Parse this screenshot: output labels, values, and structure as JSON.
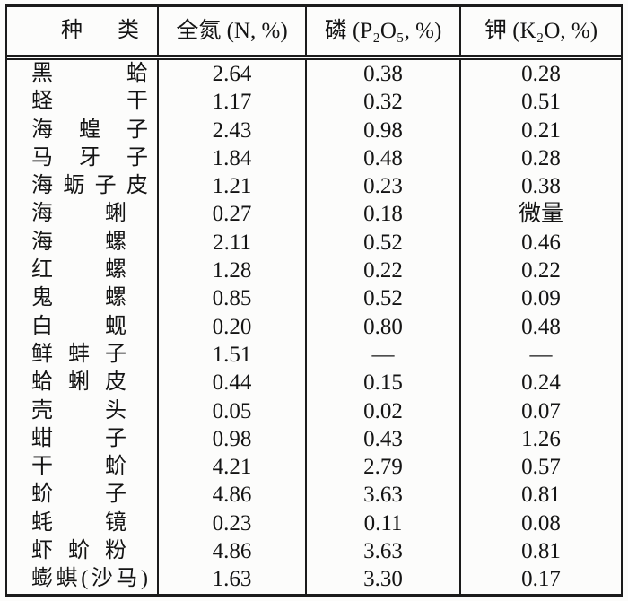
{
  "page": {
    "background": "#fcfcfb",
    "ink": "#141414",
    "line_color": "#1b1b1b"
  },
  "table": {
    "headers": [
      "种类",
      "全氮 (N, %)",
      "磷 (P₂O₅, %)",
      "钾 (K₂O, %)"
    ],
    "trace_label": "微量",
    "empty_label": "—",
    "rows": [
      {
        "name": "黑蛤",
        "n": "2.64",
        "p": "0.38",
        "k": "0.28"
      },
      {
        "name": "蛏干",
        "n": "1.17",
        "p": "0.32",
        "k": "0.51"
      },
      {
        "name": "海蝗子",
        "n": "2.43",
        "p": "0.98",
        "k": "0.21"
      },
      {
        "name": "马牙子",
        "n": "1.84",
        "p": "0.48",
        "k": "0.28"
      },
      {
        "name": "海蛎子皮",
        "n": "1.21",
        "p": "0.23",
        "k": "0.38"
      },
      {
        "name": "海蜊",
        "n": "0.27",
        "p": "0.18",
        "k": "微量"
      },
      {
        "name": "海螺",
        "n": "2.11",
        "p": "0.52",
        "k": "0.46"
      },
      {
        "name": "红螺",
        "n": "1.28",
        "p": "0.22",
        "k": "0.22"
      },
      {
        "name": "鬼螺",
        "n": "0.85",
        "p": "0.52",
        "k": "0.09"
      },
      {
        "name": "白蚬",
        "n": "0.20",
        "p": "0.80",
        "k": "0.48"
      },
      {
        "name": "鲜蚌子",
        "n": "1.51",
        "p": "—",
        "k": "—"
      },
      {
        "name": "蛤蜊皮",
        "n": "0.44",
        "p": "0.15",
        "k": "0.24"
      },
      {
        "name": "壳头",
        "n": "0.05",
        "p": "0.02",
        "k": "0.07"
      },
      {
        "name": "蚶子",
        "n": "0.98",
        "p": "0.43",
        "k": "1.26"
      },
      {
        "name": "干蚧",
        "n": "4.21",
        "p": "2.79",
        "k": "0.57"
      },
      {
        "name": "蚧子",
        "n": "4.86",
        "p": "3.63",
        "k": "0.81"
      },
      {
        "name": "蚝镜",
        "n": "0.23",
        "p": "0.11",
        "k": "0.08"
      },
      {
        "name": "虾蚧粉",
        "n": "4.86",
        "p": "3.63",
        "k": "0.81"
      },
      {
        "name": "蟛蜞(沙马)",
        "n": "1.63",
        "p": "3.30",
        "k": "0.17"
      }
    ]
  }
}
